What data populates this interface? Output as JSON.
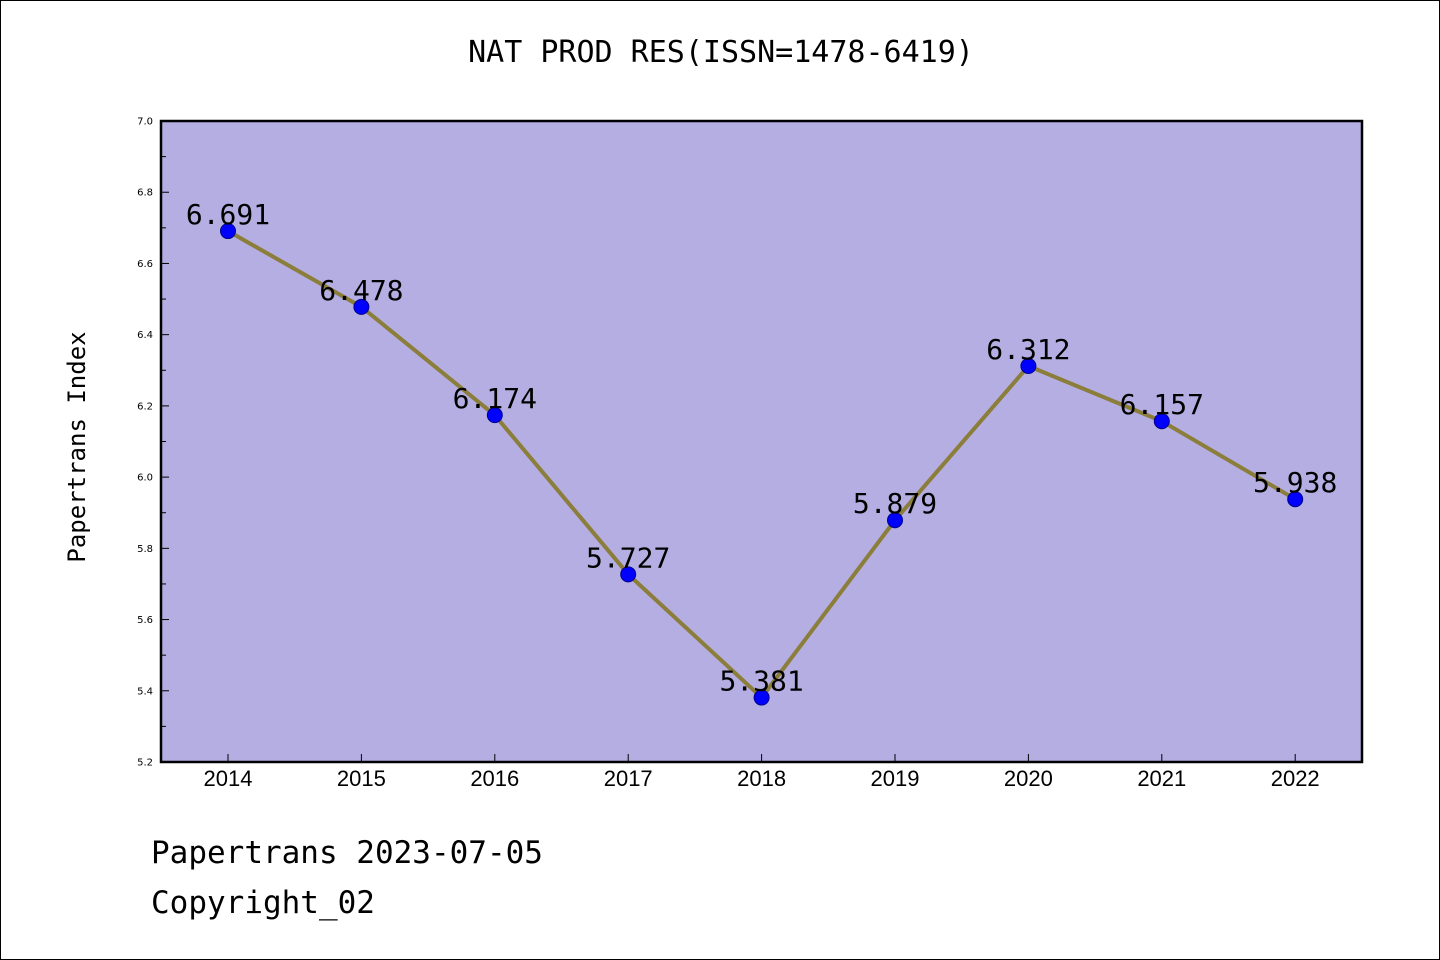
{
  "chart_data": {
    "type": "line",
    "title": "NAT PROD RES(ISSN=1478-6419)",
    "xlabel": "",
    "ylabel": "Papertrans Index",
    "categories": [
      "2014",
      "2015",
      "2016",
      "2017",
      "2018",
      "2019",
      "2020",
      "2021",
      "2022"
    ],
    "series": [
      {
        "values": [
          6.691,
          6.478,
          6.174,
          5.727,
          5.381,
          5.879,
          6.312,
          6.157,
          5.938
        ],
        "data_labels": [
          "6.691",
          "6.478",
          "6.174",
          "5.727",
          "5.381",
          "5.879",
          "6.312",
          "6.157",
          "5.938"
        ]
      }
    ],
    "ylim": [
      5.2,
      7.0
    ],
    "yticks": [
      "5.2",
      "5.4",
      "5.6",
      "5.8",
      "6.0",
      "6.2",
      "6.4",
      "6.6",
      "6.8",
      "7.0"
    ],
    "grid": false,
    "legend": "none",
    "colors": {
      "plot_background": "#b5aee2",
      "line": "#8b7d3a",
      "marker": "#0000ff",
      "marker_edge": "#00008b"
    }
  },
  "footer": {
    "date_line": "Papertrans 2023-07-05",
    "copyright": "Copyright_02"
  }
}
